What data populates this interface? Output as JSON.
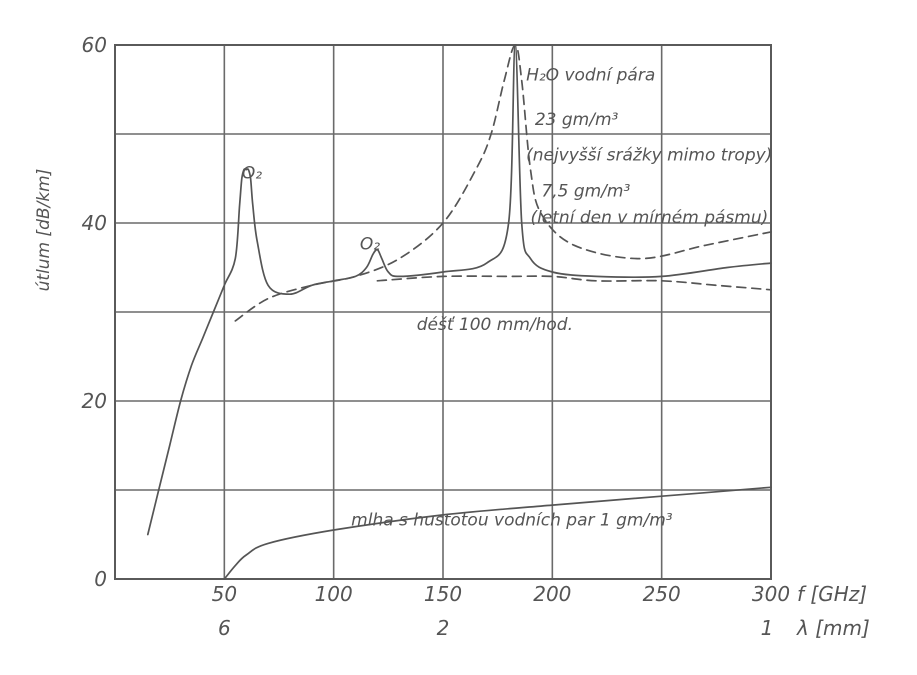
{
  "chart_data": {
    "type": "line",
    "ylabel": "útlum [dB/km]",
    "xlabel": "f [GHz]",
    "x2label": "λ [mm]",
    "xlim": [
      0,
      300
    ],
    "ylim": [
      0,
      60
    ],
    "grid": true,
    "x_ticks": [
      {
        "value": 50,
        "label": "50"
      },
      {
        "value": 100,
        "label": "100"
      },
      {
        "value": 150,
        "label": "150"
      },
      {
        "value": 200,
        "label": "200"
      },
      {
        "value": 250,
        "label": "250"
      },
      {
        "value": 300,
        "label": "300"
      }
    ],
    "x2_ticks": [
      {
        "value": 50,
        "label": "6"
      },
      {
        "value": 150,
        "label": "2"
      },
      {
        "value": 300,
        "label": "1"
      }
    ],
    "y_ticks": [
      {
        "value": 0,
        "label": "0"
      },
      {
        "value": 20,
        "label": "20"
      },
      {
        "value": 40,
        "label": "40"
      },
      {
        "value": 60,
        "label": "60"
      }
    ],
    "series": [
      {
        "style": "solid",
        "x": [
          15,
          20,
          25,
          30,
          35,
          40,
          45,
          50,
          55,
          57,
          58,
          59,
          60,
          61,
          62,
          63,
          65,
          70,
          80,
          90,
          100,
          110,
          115,
          118,
          120,
          122,
          125,
          130,
          150,
          170,
          180,
          183,
          186,
          190,
          200,
          220,
          250,
          280,
          300
        ],
        "y": [
          5,
          10,
          15,
          20,
          24,
          27,
          30,
          33,
          36,
          42,
          45,
          46,
          46,
          46,
          45,
          42,
          38,
          33,
          32,
          33,
          33.5,
          34,
          35,
          36.5,
          37,
          36,
          34.5,
          34,
          34.5,
          35.5,
          40,
          60,
          40,
          36,
          34.5,
          34,
          34,
          35,
          35.5
        ]
      },
      {
        "style": "solid",
        "x": [
          50,
          55,
          60,
          70,
          100,
          150,
          200,
          250,
          300
        ],
        "y": [
          0,
          1.5,
          2.7,
          4,
          5.5,
          7.2,
          8.3,
          9.3,
          10.3
        ]
      },
      {
        "style": "dashed",
        "x": [
          55,
          70,
          90,
          110,
          130,
          150,
          165,
          172,
          178,
          183,
          186,
          190,
          195,
          210,
          240,
          270,
          300
        ],
        "y": [
          29,
          31.5,
          33,
          34,
          36,
          40,
          46,
          50,
          56,
          60,
          56,
          46,
          41,
          37.5,
          36,
          37.5,
          39
        ]
      },
      {
        "style": "dashed",
        "x": [
          120,
          150,
          180,
          200,
          220,
          250,
          275,
          300
        ],
        "y": [
          33.5,
          34,
          34,
          34,
          33.5,
          33.5,
          33,
          32.5
        ]
      }
    ],
    "annotations": [
      {
        "x": 58,
        "y": 45,
        "text": "O₂"
      },
      {
        "x": 112,
        "y": 37,
        "text": "O₂"
      },
      {
        "x": 188,
        "y": 56,
        "text": "H₂O  vodní pára"
      },
      {
        "x": 192,
        "y": 51,
        "text": "23 gm/m³"
      },
      {
        "x": 188,
        "y": 47,
        "text": "(nejvyšší srážky mimo tropy)"
      },
      {
        "x": 195,
        "y": 43,
        "text": "7,5 gm/m³"
      },
      {
        "x": 190,
        "y": 40,
        "text": "(letní den v mírném pásmu)"
      },
      {
        "x": 138,
        "y": 28,
        "text": "déšť 100 mm/hod."
      },
      {
        "x": 108,
        "y": 6,
        "text": "mlha s hustotou vodních par 1 gm/m³"
      }
    ]
  }
}
